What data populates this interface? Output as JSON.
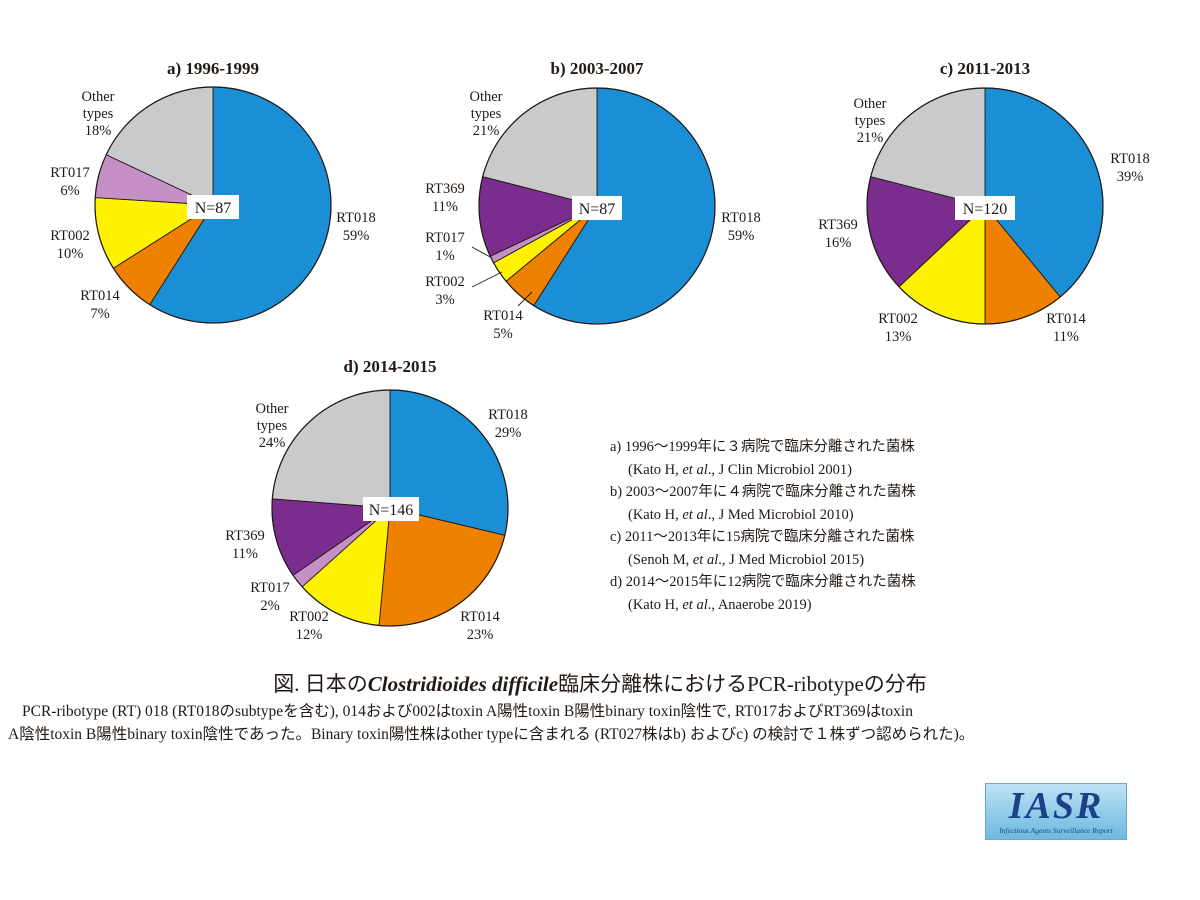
{
  "chart_data": [
    {
      "type": "pie",
      "title": "a) 1996-1999",
      "n_label": "N=87",
      "slices": [
        {
          "name": "RT018",
          "value": 59,
          "pct": "59%",
          "color": "#1a8fd6"
        },
        {
          "name": "RT014",
          "value": 7,
          "pct": "7%",
          "color": "#ee8200"
        },
        {
          "name": "RT002",
          "value": 10,
          "pct": "10%",
          "color": "#fff200"
        },
        {
          "name": "RT017",
          "value": 6,
          "pct": "6%",
          "color": "#c690c6"
        },
        {
          "name": "Other types",
          "value": 18,
          "pct": "18%",
          "color": "#c9cacc"
        }
      ]
    },
    {
      "type": "pie",
      "title": "b) 2003-2007",
      "n_label": "N=87",
      "slices": [
        {
          "name": "RT018",
          "value": 59,
          "pct": "59%",
          "color": "#1a8fd6"
        },
        {
          "name": "RT014",
          "value": 5,
          "pct": "5%",
          "color": "#ee8200"
        },
        {
          "name": "RT002",
          "value": 3,
          "pct": "3%",
          "color": "#fff200"
        },
        {
          "name": "RT017",
          "value": 1,
          "pct": "1%",
          "color": "#c690c6"
        },
        {
          "name": "RT369",
          "value": 11,
          "pct": "11%",
          "color": "#7b2c8f"
        },
        {
          "name": "Other types",
          "value": 21,
          "pct": "21%",
          "color": "#c9cacc"
        }
      ]
    },
    {
      "type": "pie",
      "title": "c) 2011-2013",
      "n_label": "N=120",
      "slices": [
        {
          "name": "RT018",
          "value": 39,
          "pct": "39%",
          "color": "#1a8fd6"
        },
        {
          "name": "RT014",
          "value": 11,
          "pct": "11%",
          "color": "#ee8200"
        },
        {
          "name": "RT002",
          "value": 13,
          "pct": "13%",
          "color": "#fff200"
        },
        {
          "name": "RT369",
          "value": 16,
          "pct": "16%",
          "color": "#7b2c8f"
        },
        {
          "name": "Other types",
          "value": 21,
          "pct": "21%",
          "color": "#c9cacc"
        }
      ]
    },
    {
      "type": "pie",
      "title": "d) 2014-2015",
      "n_label": "N=146",
      "slices": [
        {
          "name": "RT018",
          "value": 29,
          "pct": "29%",
          "color": "#1a8fd6"
        },
        {
          "name": "RT014",
          "value": 23,
          "pct": "23%",
          "color": "#ee8200"
        },
        {
          "name": "RT002",
          "value": 12,
          "pct": "12%",
          "color": "#fff200"
        },
        {
          "name": "RT017",
          "value": 2,
          "pct": "2%",
          "color": "#c690c6"
        },
        {
          "name": "RT369",
          "value": 11,
          "pct": "11%",
          "color": "#7b2c8f"
        },
        {
          "name": "Other types",
          "value": 24,
          "pct": "24%",
          "color": "#c9cacc"
        }
      ]
    }
  ],
  "sources": [
    {
      "head": "a) 1996～1999年に３病院で臨床分離された菌株",
      "authors": "(Kato H, ",
      "etal": "et al",
      "journal": "., J Clin Microbiol 2001)"
    },
    {
      "head": "b) 2003～2007年に４病院で臨床分離された菌株",
      "authors": "(Kato H, ",
      "etal": "et al",
      "journal": "., J Med Microbiol 2010)"
    },
    {
      "head": "c) 2011～2013年に15病院で臨床分離された菌株",
      "authors": "(Senoh M, ",
      "etal": "et al",
      "journal": "., J Med Microbiol 2015)"
    },
    {
      "head": "d) 2014～2015年に12病院で臨床分離された菌株",
      "authors": "(Kato H, ",
      "etal": "et al",
      "journal": "., Anaerobe 2019)"
    }
  ],
  "caption": {
    "prefix": "図. 日本の",
    "species": "Clostridioides difficile",
    "suffix": "臨床分離株におけるPCR-ribotypeの分布",
    "line1": "PCR-ribotype (RT) 018 (RT018のsubtypeを含む), 014および002はtoxin A陽性toxin B陽性binary toxin陰性で, RT017およびRT369はtoxin",
    "line2": "A陰性toxin B陽性binary toxin陰性であった。Binary toxin陽性株はother typeに含まれる (RT027株はb) およびc) の検討で１株ずつ認められた)。"
  },
  "logo": {
    "main": "IASR",
    "sub": "Infectious Agents Surveillance Report"
  }
}
